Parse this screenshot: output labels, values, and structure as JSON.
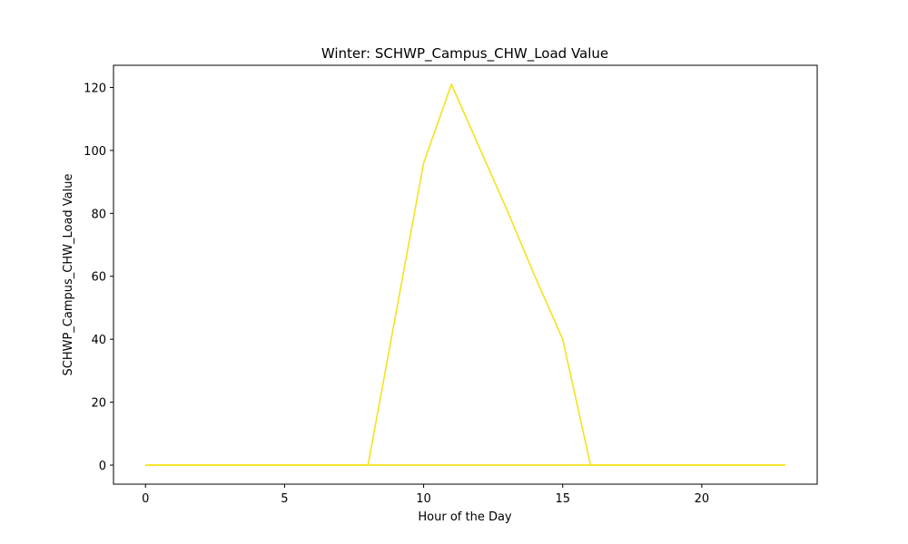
{
  "chart_data": {
    "type": "line",
    "title": "Winter: SCHWP_Campus_CHW_Load Value",
    "xlabel": "Hour of the Day",
    "ylabel": "SCHWP_Campus_CHW_Load Value",
    "xlim": [
      -1.15,
      24.15
    ],
    "ylim": [
      -6.05,
      127.05
    ],
    "xticks": [
      0,
      5,
      10,
      15,
      20
    ],
    "yticks": [
      0,
      20,
      40,
      60,
      80,
      100,
      120
    ],
    "grid": false,
    "legend": "none",
    "series": [
      {
        "name": "main",
        "color": "#f5e21b",
        "x": [
          0,
          1,
          2,
          3,
          4,
          5,
          6,
          7,
          8,
          9,
          10,
          11,
          12,
          13,
          14,
          15,
          16,
          17,
          18,
          19,
          20,
          21,
          22,
          23
        ],
        "values": [
          0,
          0,
          0,
          0,
          0,
          0,
          0,
          0,
          0,
          48,
          96,
          121,
          101,
          81,
          60,
          40,
          0,
          0,
          0,
          0,
          0,
          0,
          0,
          0
        ]
      },
      {
        "name": "baseline-1",
        "color": "#f5e21b",
        "x": [
          0,
          23
        ],
        "values": [
          0,
          0
        ]
      },
      {
        "name": "baseline-2",
        "color": "#f5e21b",
        "x": [
          0,
          23
        ],
        "values": [
          0,
          0
        ]
      }
    ]
  }
}
